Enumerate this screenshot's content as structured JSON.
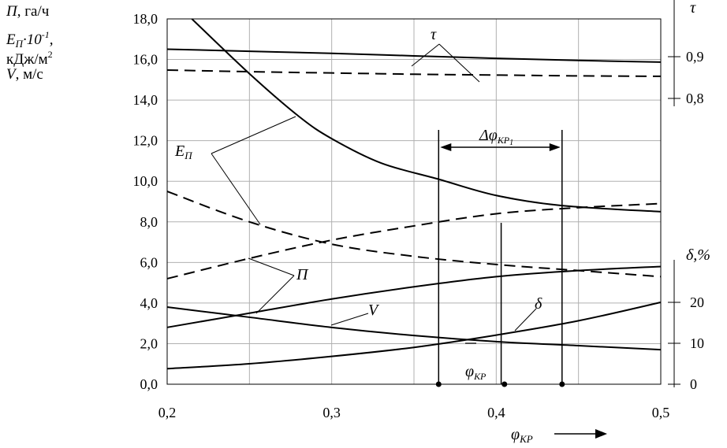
{
  "chart_data": {
    "type": "line",
    "ylabel_lines": [
      {
        "sym": "П",
        "rest": ", га/ч"
      },
      {
        "sym": "Е",
        "sub": "П",
        "rest": "·10",
        "sup": "-1",
        "tail": ","
      },
      {
        "plain": "кДж/м",
        "sup": "2"
      },
      {
        "sym": "V",
        "rest": ", м/с"
      }
    ],
    "xlabel": {
      "sym": "φ",
      "sub": "КР"
    },
    "x_ticks": [
      "0,2",
      "0,3",
      "0,4",
      "0,5"
    ],
    "xlim": [
      0.2,
      0.5
    ],
    "y_ticks": [
      "0,0",
      "2,0",
      "4,0",
      "6,0",
      "8,0",
      "10,0",
      "12,0",
      "14,0",
      "16,0",
      "18,0"
    ],
    "ylim": [
      0,
      18
    ],
    "tau_axis": {
      "label": "τ",
      "ticks": [
        "0,9",
        "0,8"
      ],
      "values": [
        0.9,
        0.8
      ]
    },
    "delta_axis": {
      "label": "δ,%",
      "ticks": [
        "20",
        "10",
        "0"
      ],
      "values": [
        20,
        10,
        0
      ]
    },
    "grid": true,
    "series": [
      {
        "name": "τ",
        "style": "solid",
        "x": [
          0.2,
          0.25,
          0.3,
          0.35,
          0.4,
          0.45,
          0.5
        ],
        "y": [
          0.918,
          0.913,
          0.908,
          0.902,
          0.896,
          0.891,
          0.887
        ]
      },
      {
        "name": "τ",
        "style": "dashed",
        "x": [
          0.2,
          0.25,
          0.3,
          0.35,
          0.4,
          0.45,
          0.5
        ],
        "y": [
          0.868,
          0.864,
          0.861,
          0.858,
          0.856,
          0.854,
          0.853
        ]
      },
      {
        "name": "Е_П",
        "style": "solid",
        "x": [
          0.215,
          0.25,
          0.28,
          0.3,
          0.33,
          0.365,
          0.4,
          0.44,
          0.5
        ],
        "y": [
          18.0,
          15.3,
          13.2,
          12.1,
          10.9,
          10.1,
          9.3,
          8.8,
          8.5
        ]
      },
      {
        "name": "Е_П",
        "style": "dashed",
        "x": [
          0.2,
          0.25,
          0.3,
          0.35,
          0.4,
          0.45,
          0.5
        ],
        "y": [
          9.5,
          8.0,
          6.9,
          6.3,
          5.9,
          5.6,
          5.3
        ]
      },
      {
        "name": "П",
        "style": "dashed",
        "x": [
          0.2,
          0.25,
          0.3,
          0.35,
          0.4,
          0.45,
          0.5
        ],
        "y": [
          5.2,
          6.2,
          7.1,
          7.8,
          8.4,
          8.7,
          8.9
        ]
      },
      {
        "name": "П",
        "style": "solid",
        "x": [
          0.2,
          0.25,
          0.3,
          0.35,
          0.4,
          0.45,
          0.5
        ],
        "y": [
          2.8,
          3.5,
          4.2,
          4.8,
          5.3,
          5.6,
          5.8
        ]
      },
      {
        "name": "V",
        "style": "solid",
        "x": [
          0.2,
          0.25,
          0.3,
          0.35,
          0.4,
          0.45,
          0.5
        ],
        "y": [
          3.8,
          3.3,
          2.8,
          2.4,
          2.1,
          1.9,
          1.7
        ]
      },
      {
        "name": "δ",
        "style": "solid",
        "x": [
          0.2,
          0.25,
          0.3,
          0.35,
          0.4,
          0.45,
          0.5
        ],
        "y": [
          3.8,
          5.0,
          6.8,
          9.0,
          12.0,
          15.5,
          20.0
        ]
      }
    ],
    "annotations": {
      "tau_label": "τ",
      "ep_label": {
        "sym": "Е",
        "sub": "П"
      },
      "p_label": "П",
      "v_label": "V",
      "delta_label": "δ",
      "delta_phi": {
        "text": "Δφ",
        "sub": "КР",
        "subsub": "1",
        "x_from": 0.365,
        "x_to": 0.44
      },
      "phi_bar": {
        "text": "φ",
        "sub": "КР",
        "x": 0.403
      },
      "marked_x": [
        0.365,
        0.405,
        0.44
      ]
    }
  }
}
